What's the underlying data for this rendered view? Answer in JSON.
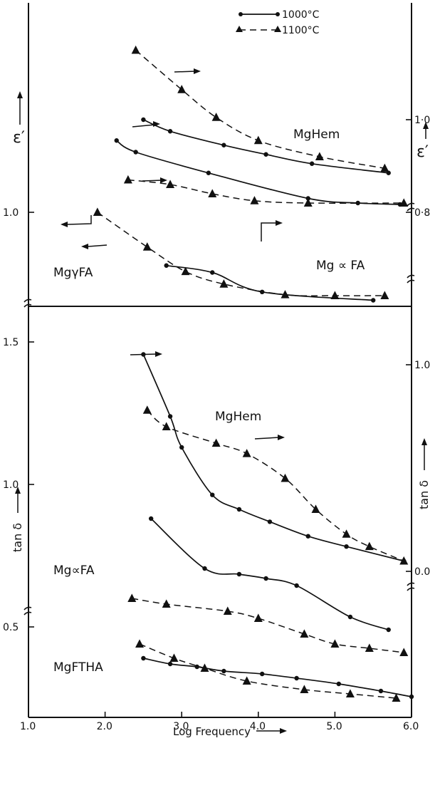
{
  "chart_data": [
    {
      "type": "line",
      "panel": "top",
      "ylabel_left": "ε′",
      "ylabel_right": "ε′",
      "left_ticks": [
        {
          "value": 1.0,
          "label": "1.0"
        }
      ],
      "right_ticks": [
        {
          "value": 1.0,
          "label": "1·0"
        },
        {
          "value": 0.8,
          "label": "0·8"
        }
      ],
      "legend": {
        "position": "top-center",
        "entries": [
          {
            "label": "1000°C",
            "marker": "dot",
            "line": "solid"
          },
          {
            "label": "1100°C",
            "marker": "triangle",
            "line": "dashed"
          }
        ]
      },
      "annotations": [
        "MgHem",
        "MgγFA",
        "Mg ∝ FA"
      ],
      "series": [
        {
          "name": "MgHem",
          "temp": "1000°C",
          "axis": "right",
          "x": [
            2.5,
            2.85,
            3.55,
            4.1,
            4.7,
            5.7
          ],
          "y": [
            1.0,
            0.975,
            0.945,
            0.925,
            0.905,
            0.885
          ]
        },
        {
          "name": "MgHem",
          "temp": "1100°C",
          "axis": "right",
          "x": [
            2.4,
            3.0,
            3.45,
            4.0,
            4.8,
            5.65
          ],
          "y": [
            1.15,
            1.065,
            1.005,
            0.955,
            0.92,
            0.895
          ]
        },
        {
          "name": "Mg ∝ FA",
          "temp": "1000°C",
          "axis": "right",
          "x": [
            2.15,
            2.4,
            3.35,
            4.65,
            5.3,
            5.85
          ],
          "y": [
            0.955,
            0.93,
            0.885,
            0.83,
            0.82,
            0.817
          ]
        },
        {
          "name": "Mg ∝ FA",
          "temp": "1100°C",
          "axis": "right",
          "x": [
            2.3,
            2.85,
            3.4,
            3.95,
            4.65,
            5.9
          ],
          "y": [
            0.87,
            0.86,
            0.84,
            0.825,
            0.82,
            0.82
          ]
        },
        {
          "name": "MgγFA",
          "temp": "1000°C",
          "axis": "left",
          "x": [
            2.8,
            3.4,
            4.05,
            5.5
          ],
          "y": [
            0.885,
            0.87,
            0.828,
            0.81
          ]
        },
        {
          "name": "MgγFA",
          "temp": "1100°C",
          "axis": "left",
          "x": [
            1.9,
            2.55,
            3.05,
            3.55,
            4.35,
            5.0,
            5.65
          ],
          "y": [
            1.0,
            0.925,
            0.872,
            0.845,
            0.822,
            0.82,
            0.82
          ]
        }
      ]
    },
    {
      "type": "line",
      "panel": "bottom",
      "xlabel": "Log Frequency",
      "ylabel_left": "tan δ",
      "ylabel_right": "tan δ",
      "xlim": [
        1.0,
        6.0
      ],
      "x_ticks": [
        {
          "value": 1.0,
          "label": "1.0"
        },
        {
          "value": 2.0,
          "label": "2.0"
        },
        {
          "value": 3.0,
          "label": "3.0"
        },
        {
          "value": 4.0,
          "label": "4.0"
        },
        {
          "value": 5.0,
          "label": "5.0"
        },
        {
          "value": 6.0,
          "label": "6.0"
        }
      ],
      "left_ticks": [
        {
          "value": 1.5,
          "label": "1.5"
        },
        {
          "value": 1.0,
          "label": "1.0"
        },
        {
          "value": 0.5,
          "label": "0.5"
        }
      ],
      "right_ticks": [
        {
          "value": 1.0,
          "label": "1.0"
        },
        {
          "value": 0.0,
          "label": "0.0"
        }
      ],
      "annotations": [
        "MgHem",
        "Mg∝FA",
        "MgFTHA"
      ],
      "series": [
        {
          "name": "MgHem",
          "temp": "1000°C",
          "axis": "right",
          "x": [
            2.5,
            2.85,
            3.0,
            3.4,
            3.75,
            4.15,
            4.65,
            5.15,
            5.9
          ],
          "y": [
            1.05,
            0.75,
            0.6,
            0.37,
            0.3,
            0.24,
            0.17,
            0.12,
            0.05
          ]
        },
        {
          "name": "MgHem",
          "temp": "1100°C",
          "axis": "right",
          "x": [
            2.55,
            2.8,
            3.45,
            3.85,
            4.35,
            4.75,
            5.15,
            5.45,
            5.9
          ],
          "y": [
            0.78,
            0.7,
            0.62,
            0.57,
            0.45,
            0.3,
            0.18,
            0.12,
            0.05
          ]
        },
        {
          "name": "Mg∝FA",
          "temp": "1000°C",
          "axis": "left",
          "x": [
            2.6,
            3.3,
            3.75,
            4.1,
            4.5,
            5.2,
            5.7
          ],
          "y": [
            0.88,
            0.705,
            0.685,
            0.67,
            0.645,
            0.535,
            0.49
          ]
        },
        {
          "name": "Mg∝FA",
          "temp": "1100°C",
          "axis": "left",
          "x": [
            2.35,
            2.8,
            3.6,
            4.0,
            4.6,
            5.0,
            5.45,
            5.9
          ],
          "y": [
            0.6,
            0.58,
            0.555,
            0.53,
            0.475,
            0.44,
            0.425,
            0.41
          ]
        },
        {
          "name": "MgFTHA",
          "temp": "1000°C",
          "axis": "left",
          "x": [
            2.5,
            2.85,
            3.2,
            3.55,
            4.05,
            4.5,
            5.05,
            5.6,
            6.0
          ],
          "y": [
            0.39,
            0.37,
            0.36,
            0.345,
            0.335,
            0.32,
            0.3,
            0.275,
            0.255
          ]
        },
        {
          "name": "MgFTHA",
          "temp": "1100°C",
          "axis": "left",
          "x": [
            2.45,
            2.9,
            3.3,
            3.85,
            4.6,
            5.2,
            5.8
          ],
          "y": [
            0.44,
            0.39,
            0.355,
            0.31,
            0.28,
            0.265,
            0.25
          ]
        }
      ]
    }
  ]
}
